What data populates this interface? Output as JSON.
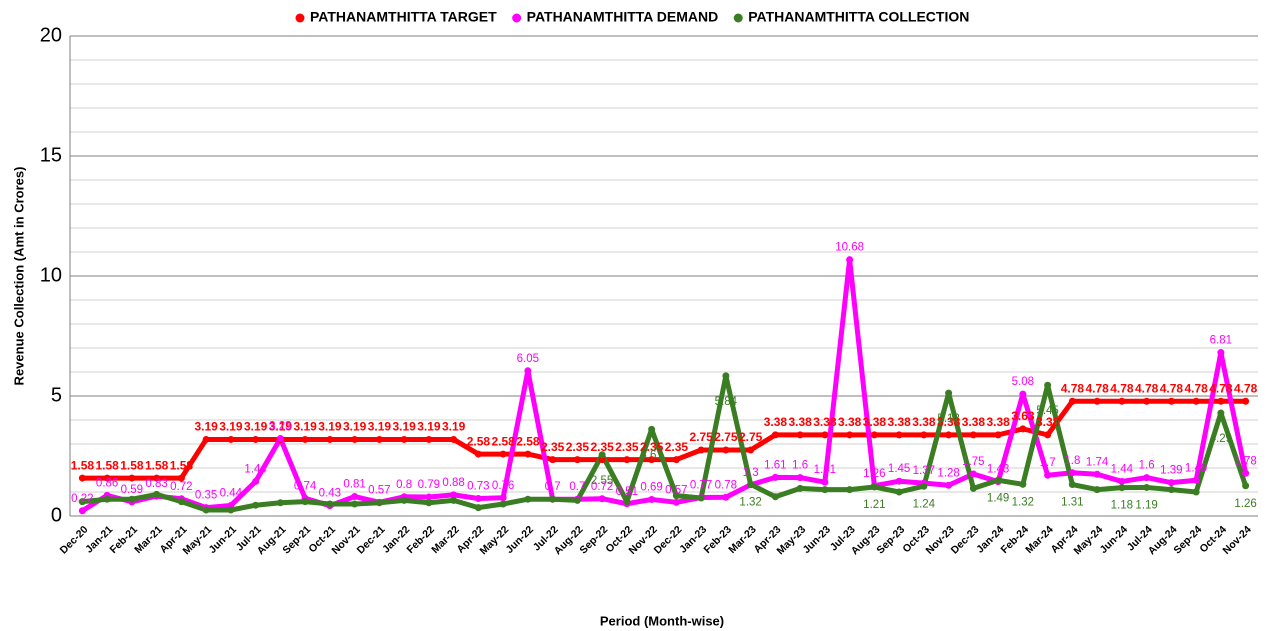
{
  "chart_data": {
    "type": "line",
    "x_label": "Period (Month-wise)",
    "y_label": "Revenue Collection (Amt in Crores)",
    "categories": [
      "Dec-20",
      "Jan-21",
      "Feb-21",
      "Mar-21",
      "Apr-21",
      "May-21",
      "Jun-21",
      "Jul-21",
      "Aug-21",
      "Sep-21",
      "Oct-21",
      "Nov-21",
      "Dec-21",
      "Jan-22",
      "Feb-22",
      "Mar-22",
      "Apr-22",
      "May-22",
      "Jun-22",
      "Jul-22",
      "Aug-22",
      "Sep-22",
      "Oct-22",
      "Nov-22",
      "Dec-22",
      "Jan-23",
      "Feb-23",
      "Mar-23",
      "Apr-23",
      "May-23",
      "Jun-23",
      "Jul-23",
      "Aug-23",
      "Sep-23",
      "Oct-23",
      "Nov-23",
      "Dec-23",
      "Jan-24",
      "Feb-24",
      "Mar-24",
      "Apr-24",
      "May-24",
      "Jun-24",
      "Jul-24",
      "Aug-24",
      "Sep-24",
      "Oct-24",
      "Nov-24"
    ],
    "series": [
      {
        "name": "PATHANAMTHITTA TARGET",
        "color": "#ff0000",
        "values": [
          1.58,
          1.58,
          1.58,
          1.58,
          1.58,
          3.19,
          3.19,
          3.19,
          3.19,
          3.19,
          3.19,
          3.19,
          3.19,
          3.19,
          3.19,
          3.19,
          2.58,
          2.58,
          2.58,
          2.35,
          2.35,
          2.35,
          2.35,
          2.35,
          2.35,
          2.75,
          2.75,
          2.75,
          3.38,
          3.38,
          3.38,
          3.38,
          3.38,
          3.38,
          3.38,
          3.38,
          3.38,
          3.38,
          3.63,
          3.38,
          4.78,
          4.78,
          4.78,
          4.78,
          4.78,
          4.78,
          4.78,
          4.78
        ]
      },
      {
        "name": "PATHANAMTHITTA DEMAND",
        "color": "#ff00ff",
        "values": [
          0.22,
          0.86,
          0.59,
          0.83,
          0.72,
          0.35,
          0.44,
          1.44,
          3.23,
          0.74,
          0.43,
          0.81,
          0.57,
          0.8,
          0.79,
          0.88,
          0.73,
          0.76,
          6.05,
          0.7,
          0.7,
          0.72,
          0.51,
          0.69,
          0.57,
          0.77,
          0.78,
          1.3,
          1.61,
          1.6,
          1.41,
          10.68,
          1.26,
          1.45,
          1.37,
          1.28,
          1.75,
          1.43,
          5.08,
          1.7,
          1.8,
          1.74,
          1.44,
          1.6,
          1.39,
          1.49,
          6.81,
          1.78
        ]
      },
      {
        "name": "PATHANAMTHITTA COLLECTION",
        "color": "#3a7d22",
        "values": [
          0.6,
          0.7,
          0.7,
          0.9,
          0.6,
          0.25,
          0.25,
          0.45,
          0.55,
          0.6,
          0.5,
          0.5,
          0.55,
          0.65,
          0.55,
          0.65,
          0.35,
          0.5,
          0.7,
          0.7,
          0.65,
          2.55,
          0.6,
          3.61,
          0.85,
          0.75,
          5.84,
          1.32,
          0.8,
          1.15,
          1.1,
          1.1,
          1.21,
          1.0,
          1.24,
          5.12,
          1.15,
          1.49,
          1.32,
          5.45,
          1.31,
          1.1,
          1.18,
          1.19,
          1.1,
          1.0,
          4.29,
          1.26
        ],
        "value_labels": [
          null,
          null,
          null,
          null,
          null,
          null,
          null,
          null,
          null,
          null,
          null,
          null,
          null,
          null,
          null,
          null,
          null,
          null,
          null,
          null,
          null,
          "2.55",
          null,
          "3.61",
          null,
          null,
          "5.84",
          "1.32",
          null,
          null,
          null,
          null,
          "1.21",
          null,
          "1.24",
          "5.12",
          null,
          "1.49",
          "1.32",
          "5.45",
          "1.31",
          null,
          "1.18",
          "1.19",
          null,
          null,
          "4.29",
          "1.26"
        ]
      }
    ],
    "ylim": [
      0,
      20
    ],
    "yticks": [
      0,
      5,
      10,
      15,
      20
    ],
    "minor_yticks": [
      1,
      2,
      3,
      4,
      6,
      7,
      8,
      9,
      11,
      12,
      13,
      14,
      16,
      17,
      18,
      19
    ],
    "grid": true,
    "legend": "top"
  }
}
